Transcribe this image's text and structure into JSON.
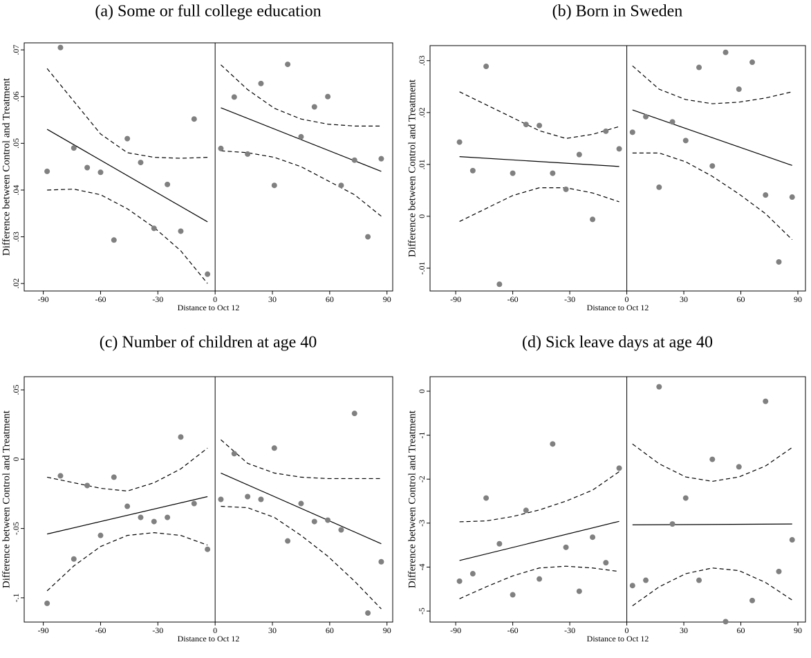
{
  "chart_data": [
    {
      "type": "scatter",
      "title": "(a) Some or full college education",
      "xlabel": "Distance to Oct 12",
      "ylabel": "Difference between Control and Treatment",
      "x": [
        -88,
        -81,
        -74,
        -67,
        -60,
        -53,
        -46,
        -39,
        -32,
        -25,
        -18,
        -11,
        -4,
        3,
        10,
        17,
        24,
        31,
        38,
        45,
        52,
        59,
        66,
        73,
        80,
        87
      ],
      "values": [
        0.044,
        0.0705,
        0.049,
        0.0448,
        0.0438,
        0.0293,
        0.051,
        0.0459,
        0.0318,
        0.0412,
        0.0312,
        0.0552,
        0.022,
        0.0489,
        0.0599,
        0.0477,
        0.0628,
        0.041,
        0.0669,
        0.0514,
        0.0578,
        0.06,
        0.041,
        0.0464,
        0.03,
        0.0467
      ],
      "fits": [
        {
          "x": [
            -88,
            -4
          ],
          "values": [
            0.053,
            0.0332
          ]
        },
        {
          "x": [
            3,
            87
          ],
          "values": [
            0.0576,
            0.044
          ]
        }
      ],
      "ci": [
        {
          "x": [
            -88,
            -74,
            -60,
            -46,
            -32,
            -18,
            -4
          ],
          "values": [
            0.066,
            0.059,
            0.052,
            0.048,
            0.047,
            0.0468,
            0.047
          ]
        },
        {
          "x": [
            -88,
            -74,
            -60,
            -46,
            -32,
            -18,
            -4
          ],
          "values": [
            0.04,
            0.0402,
            0.039,
            0.036,
            0.032,
            0.027,
            0.02
          ]
        },
        {
          "x": [
            3,
            17,
            31,
            45,
            59,
            73,
            87
          ],
          "values": [
            0.0668,
            0.0615,
            0.0575,
            0.0552,
            0.0541,
            0.0537,
            0.0537
          ]
        },
        {
          "x": [
            3,
            17,
            31,
            45,
            59,
            73,
            87
          ],
          "values": [
            0.0484,
            0.048,
            0.047,
            0.045,
            0.042,
            0.039,
            0.0344
          ]
        }
      ],
      "cutoff": 0,
      "xlim": [
        -100,
        93
      ],
      "xticks": [
        -90,
        -60,
        -30,
        0,
        30,
        60,
        90
      ],
      "ylim": [
        0.0184,
        0.0715
      ],
      "yticks": [
        {
          "value": 0.02,
          "label": ".02"
        },
        {
          "value": 0.03,
          "label": ".03"
        },
        {
          "value": 0.04,
          "label": ".04"
        },
        {
          "value": 0.05,
          "label": ".05"
        },
        {
          "value": 0.06,
          "label": ".06"
        },
        {
          "value": 0.07,
          "label": ".07"
        }
      ],
      "color": "#808080"
    },
    {
      "type": "scatter",
      "title": "(b) Born in Sweden",
      "xlabel": "Distance to Oct 12",
      "ylabel": "Difference between Control and Treatment",
      "x": [
        -88,
        -81,
        -74,
        -67,
        -60,
        -53,
        -46,
        -39,
        -32,
        -25,
        -18,
        -11,
        -4,
        3,
        10,
        17,
        24,
        31,
        38,
        45,
        52,
        59,
        66,
        73,
        80,
        87
      ],
      "values": [
        0.0143,
        0.0088,
        0.0289,
        -0.0131,
        0.0083,
        0.0177,
        0.0175,
        0.0083,
        0.0052,
        0.0119,
        -0.0006,
        0.0164,
        0.013,
        0.0162,
        0.0192,
        0.0056,
        0.0182,
        0.0146,
        0.0287,
        0.0097,
        0.0316,
        0.0245,
        0.0297,
        0.0041,
        -0.0088,
        0.0037
      ],
      "fits": [
        {
          "x": [
            -88,
            -4
          ],
          "values": [
            0.0115,
            0.0096
          ]
        },
        {
          "x": [
            3,
            87
          ],
          "values": [
            0.0205,
            0.0098
          ]
        }
      ],
      "ci": [
        {
          "x": [
            -88,
            -74,
            -60,
            -46,
            -32,
            -18,
            -4
          ],
          "values": [
            0.024,
            0.0215,
            0.019,
            0.0165,
            0.015,
            0.0158,
            0.0173
          ]
        },
        {
          "x": [
            -88,
            -74,
            -60,
            -46,
            -32,
            -18,
            -4
          ],
          "values": [
            -0.001,
            0.0015,
            0.004,
            0.0055,
            0.0055,
            0.0045,
            0.0028
          ]
        },
        {
          "x": [
            3,
            17,
            31,
            45,
            59,
            73,
            87
          ],
          "values": [
            0.029,
            0.0245,
            0.0225,
            0.0217,
            0.022,
            0.0228,
            0.024
          ]
        },
        {
          "x": [
            3,
            17,
            31,
            45,
            59,
            73,
            87
          ],
          "values": [
            0.0122,
            0.0122,
            0.0105,
            0.0077,
            0.0043,
            0.0005,
            -0.0045
          ]
        }
      ],
      "cutoff": 0,
      "xlim": [
        -103.5,
        94
      ],
      "xticks": [
        -90,
        -60,
        -30,
        0,
        30,
        60,
        90
      ],
      "ylim": [
        -0.0144,
        0.0329
      ],
      "yticks": [
        {
          "value": -0.01,
          "label": "-.01"
        },
        0,
        {
          "value": 0.01,
          "label": ".01"
        },
        {
          "value": 0.02,
          "label": ".02"
        },
        {
          "value": 0.03,
          "label": ".03"
        }
      ],
      "color": "#808080"
    },
    {
      "type": "scatter",
      "title": "(c) Number of children at age 40",
      "xlabel": "Distance to Oct 12",
      "ylabel": "Difference between Control and Treatment",
      "x": [
        -88,
        -81,
        -74,
        -67,
        -60,
        -53,
        -46,
        -39,
        -32,
        -25,
        -18,
        -11,
        -4,
        3,
        10,
        17,
        24,
        31,
        38,
        45,
        52,
        59,
        66,
        73,
        80,
        87
      ],
      "values": [
        -0.104,
        -0.012,
        -0.072,
        -0.019,
        -0.055,
        -0.013,
        -0.034,
        -0.042,
        -0.045,
        -0.042,
        0.016,
        -0.032,
        -0.065,
        -0.029,
        0.004,
        -0.027,
        -0.029,
        0.008,
        -0.059,
        -0.032,
        -0.045,
        -0.044,
        -0.051,
        0.033,
        -0.111,
        -0.074
      ],
      "fits": [
        {
          "x": [
            -88,
            -4
          ],
          "values": [
            -0.054,
            -0.027
          ]
        },
        {
          "x": [
            3,
            87
          ],
          "values": [
            -0.01,
            -0.061
          ]
        }
      ],
      "ci": [
        {
          "x": [
            -88,
            -74,
            -60,
            -46,
            -32,
            -18,
            -4
          ],
          "values": [
            -0.013,
            -0.017,
            -0.021,
            -0.023,
            -0.017,
            -0.007,
            0.008
          ]
        },
        {
          "x": [
            -88,
            -74,
            -60,
            -46,
            -32,
            -18,
            -4
          ],
          "values": [
            -0.095,
            -0.077,
            -0.063,
            -0.055,
            -0.053,
            -0.055,
            -0.062
          ]
        },
        {
          "x": [
            3,
            17,
            31,
            45,
            59,
            73,
            87
          ],
          "values": [
            0.014,
            -0.003,
            -0.01,
            -0.013,
            -0.014,
            -0.014,
            -0.014
          ]
        },
        {
          "x": [
            3,
            17,
            31,
            45,
            59,
            73,
            87
          ],
          "values": [
            -0.034,
            -0.035,
            -0.042,
            -0.055,
            -0.07,
            -0.088,
            -0.108
          ]
        }
      ],
      "cutoff": 0,
      "xlim": [
        -100,
        93
      ],
      "xticks": [
        -90,
        -60,
        -30,
        0,
        30,
        60,
        90
      ],
      "ylim": [
        -0.1175,
        0.0595
      ],
      "yticks": [
        {
          "value": -0.1,
          "label": "-.1"
        },
        {
          "value": -0.05,
          "label": "-.05"
        },
        0,
        {
          "value": 0.05,
          "label": ".05"
        }
      ],
      "color": "#808080"
    },
    {
      "type": "scatter",
      "title": "(d) Sick leave days at age 40",
      "xlabel": "Distance to Oct 12",
      "ylabel": "Difference between Control and Treatment",
      "x": [
        -88,
        -81,
        -74,
        -67,
        -60,
        -53,
        -46,
        -39,
        -32,
        -25,
        -18,
        -11,
        -4,
        3,
        10,
        17,
        24,
        31,
        38,
        45,
        52,
        59,
        66,
        73,
        80,
        87
      ],
      "values": [
        -4.32,
        -4.15,
        -2.43,
        -3.47,
        -4.63,
        -2.71,
        -4.27,
        -1.2,
        -3.55,
        -4.55,
        -3.32,
        -3.9,
        -1.75,
        -4.42,
        -4.3,
        0.1,
        -3.02,
        -2.43,
        -4.3,
        -1.55,
        -5.24,
        -1.72,
        -4.76,
        -0.23,
        -4.1,
        -3.38
      ],
      "fits": [
        {
          "x": [
            -88,
            -4
          ],
          "values": [
            -3.85,
            -2.96
          ]
        },
        {
          "x": [
            3,
            87
          ],
          "values": [
            -3.04,
            -3.02
          ]
        }
      ],
      "ci": [
        {
          "x": [
            -88,
            -74,
            -60,
            -46,
            -32,
            -18,
            -4
          ],
          "values": [
            -2.97,
            -2.95,
            -2.85,
            -2.7,
            -2.5,
            -2.25,
            -1.83
          ]
        },
        {
          "x": [
            -88,
            -74,
            -60,
            -46,
            -32,
            -18,
            -4
          ],
          "values": [
            -4.72,
            -4.45,
            -4.2,
            -4.02,
            -3.98,
            -4.02,
            -4.1
          ]
        },
        {
          "x": [
            3,
            17,
            31,
            45,
            59,
            73,
            87
          ],
          "values": [
            -1.2,
            -1.65,
            -1.95,
            -2.05,
            -1.95,
            -1.7,
            -1.28
          ]
        },
        {
          "x": [
            3,
            17,
            31,
            45,
            59,
            73,
            87
          ],
          "values": [
            -4.88,
            -4.45,
            -4.15,
            -4.02,
            -4.08,
            -4.35,
            -4.75
          ]
        }
      ],
      "cutoff": 0,
      "xlim": [
        -103.5,
        94
      ],
      "xticks": [
        -90,
        -60,
        -30,
        0,
        30,
        60,
        90
      ],
      "ylim": [
        -5.25,
        0.33
      ],
      "yticks": [
        -5,
        -4,
        -3,
        -2,
        -1,
        0
      ],
      "color": "#808080"
    }
  ]
}
